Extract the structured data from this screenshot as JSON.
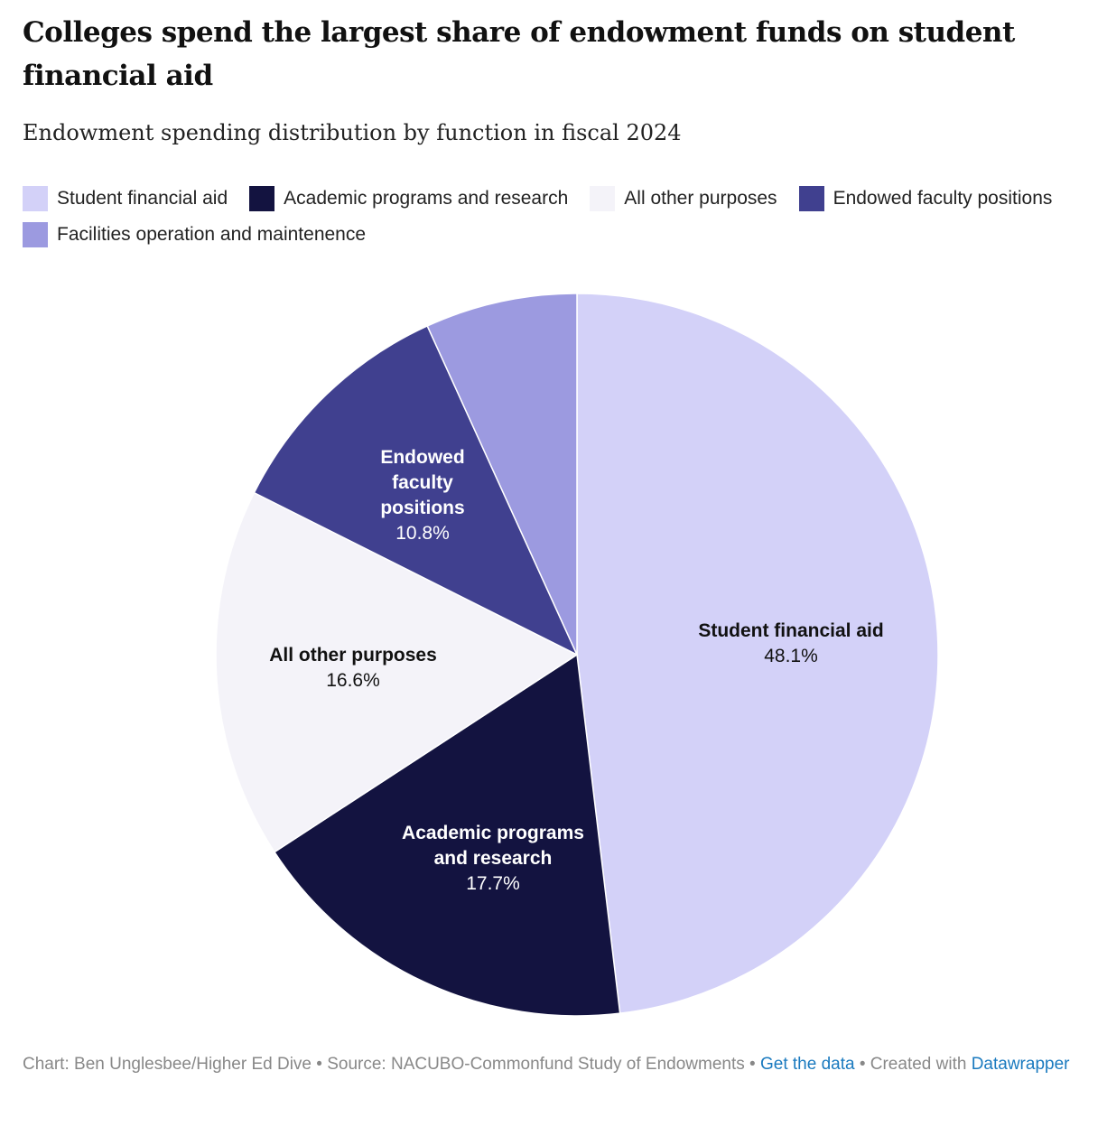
{
  "title": "Colleges spend the largest share of endowment funds on student financial aid",
  "subtitle": "Endowment spending distribution by function in fiscal 2024",
  "chart_data": {
    "type": "pie",
    "legend_placement": "top",
    "slices": [
      {
        "name": "Student financial aid",
        "value": 48.1,
        "value_label": "48.1%",
        "label_lines": [
          "Student financial aid"
        ],
        "color": "#d3d1f8",
        "label_color": "#111111"
      },
      {
        "name": "Academic programs and research",
        "value": 17.7,
        "value_label": "17.7%",
        "label_lines": [
          "Academic programs",
          "and research"
        ],
        "color": "#131340",
        "label_color": "#ffffff"
      },
      {
        "name": "All other purposes",
        "value": 16.6,
        "value_label": "16.6%",
        "label_lines": [
          "All other purposes"
        ],
        "color": "#f4f3f9",
        "label_color": "#111111"
      },
      {
        "name": "Endowed faculty positions",
        "value": 10.8,
        "value_label": "10.8%",
        "label_lines": [
          "Endowed",
          "faculty",
          "positions"
        ],
        "color": "#40408f",
        "label_color": "#ffffff"
      },
      {
        "name": "Facilities operation and maintenence",
        "value": 6.8,
        "value_label": "",
        "label_lines": [],
        "color": "#9c9ae0",
        "label_color": "#111111"
      }
    ],
    "legend": [
      {
        "name": "Student financial aid",
        "color": "#d3d1f8"
      },
      {
        "name": "Academic programs and research",
        "color": "#131340"
      },
      {
        "name": "All other purposes",
        "color": "#f4f3f9"
      },
      {
        "name": "Endowed faculty positions",
        "color": "#40408f"
      },
      {
        "name": "Facilities operation and maintenence",
        "color": "#9c9ae0"
      }
    ]
  },
  "footer": {
    "credit": "Chart: Ben Unglesbee/Higher Ed Dive • Source: NACUBO-Commonfund Study of Endowments • ",
    "get_data": "Get the data",
    "created_with": " • Created with ",
    "datawrapper": "Datawrapper"
  }
}
